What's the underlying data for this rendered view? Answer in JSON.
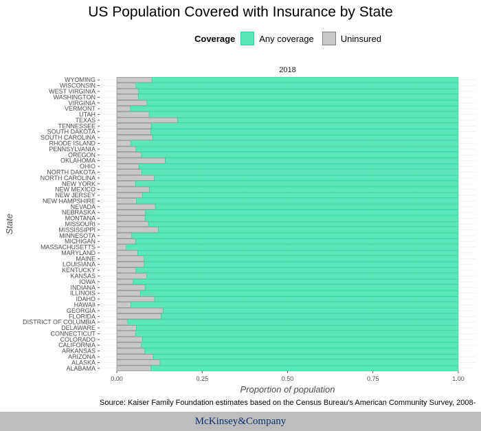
{
  "chart_data": {
    "type": "bar",
    "orientation": "horizontal",
    "stacked": true,
    "title": "US Population Covered with Insurance by State",
    "facet_label": "2018",
    "xlabel": "Proportion of population",
    "ylabel": "State",
    "xlim": [
      0,
      1
    ],
    "xticks": [
      "0.00",
      "0.25",
      "0.50",
      "0.75",
      "1.00"
    ],
    "grid": true,
    "legend_position": "top",
    "legend": {
      "title": "Coverage",
      "items": [
        {
          "name": "Any coverage",
          "color": "#5ce6b9",
          "border": "#1fd39a"
        },
        {
          "name": "Uninsured",
          "color": "#c8c8c8",
          "border": "#7d7d7d"
        }
      ]
    },
    "categories": [
      "WYOMING",
      "WISCONSIN",
      "WEST VIRGINIA",
      "WASHINGTON",
      "VIRGINIA",
      "VERMONT",
      "UTAH",
      "TEXAS",
      "TENNESSEE",
      "SOUTH DAKOTA",
      "SOUTH CAROLINA",
      "RHODE ISLAND",
      "PENNSYLVANIA",
      "OREGON",
      "OKLAHOMA",
      "OHIO",
      "NORTH DAKOTA",
      "NORTH CAROLINA",
      "NEW YORK",
      "NEW MEXICO",
      "NEW JERSEY",
      "NEW HAMPSHIRE",
      "NEVADA",
      "NEBRASKA",
      "MONTANA",
      "MISSOURI",
      "MISSISSIPPI",
      "MINNESOTA",
      "MICHIGAN",
      "MASSACHUSETTS",
      "MARYLAND",
      "MAINE",
      "LOUISIANA",
      "KENTUCKY",
      "KANSAS",
      "IOWA",
      "INDIANA",
      "ILLINOIS",
      "IDAHO",
      "HAWAII",
      "GEORGIA",
      "FLORIDA",
      "DISTRICT OF COLUMBIA",
      "DELAWARE",
      "CONNECTICUT",
      "COLORADO",
      "CALIFORNIA",
      "ARKANSAS",
      "ARIZONA",
      "ALASKA",
      "ALABAMA"
    ],
    "series": [
      {
        "name": "Uninsured",
        "values": [
          0.103,
          0.056,
          0.064,
          0.063,
          0.088,
          0.04,
          0.095,
          0.178,
          0.101,
          0.1,
          0.105,
          0.041,
          0.056,
          0.072,
          0.142,
          0.065,
          0.073,
          0.11,
          0.055,
          0.096,
          0.075,
          0.057,
          0.113,
          0.084,
          0.083,
          0.093,
          0.122,
          0.044,
          0.055,
          0.028,
          0.061,
          0.08,
          0.08,
          0.056,
          0.088,
          0.048,
          0.083,
          0.069,
          0.111,
          0.041,
          0.136,
          0.13,
          0.032,
          0.057,
          0.055,
          0.075,
          0.072,
          0.082,
          0.107,
          0.127,
          0.1
        ]
      },
      {
        "name": "Any coverage",
        "values": [
          0.897,
          0.944,
          0.936,
          0.937,
          0.912,
          0.96,
          0.905,
          0.822,
          0.899,
          0.9,
          0.895,
          0.959,
          0.944,
          0.928,
          0.858,
          0.935,
          0.927,
          0.89,
          0.945,
          0.904,
          0.925,
          0.943,
          0.887,
          0.916,
          0.917,
          0.907,
          0.878,
          0.956,
          0.945,
          0.972,
          0.939,
          0.92,
          0.92,
          0.944,
          0.912,
          0.952,
          0.917,
          0.931,
          0.889,
          0.959,
          0.864,
          0.87,
          0.968,
          0.943,
          0.945,
          0.925,
          0.928,
          0.918,
          0.893,
          0.873,
          0.9
        ]
      }
    ]
  },
  "source": "Source: Kaiser Family Foundation estimates based on the Census Bureau's American Community Survey, 2008-",
  "footer": {
    "logo": "McKinsey&Company"
  }
}
